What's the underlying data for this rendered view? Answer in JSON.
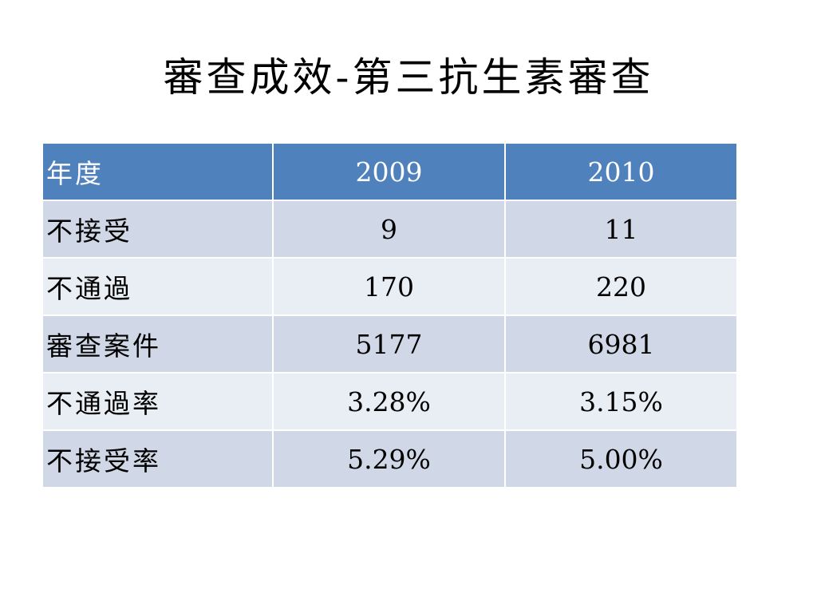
{
  "title": "審查成效-第三抗生素審查",
  "table": {
    "header": [
      "年度",
      "2009",
      "2010"
    ],
    "rows": [
      [
        "不接受",
        "9",
        "11"
      ],
      [
        "不通過",
        "170",
        "220"
      ],
      [
        "審查案件",
        "5177",
        "6981"
      ],
      [
        "不通過率",
        "3.28%",
        "3.15%"
      ],
      [
        "不接受率",
        "5.29%",
        "5.00%"
      ]
    ]
  },
  "colors": {
    "header_bg": "#4f81bd",
    "row_dark": "#d0d8e8",
    "row_light": "#e9edf4"
  }
}
